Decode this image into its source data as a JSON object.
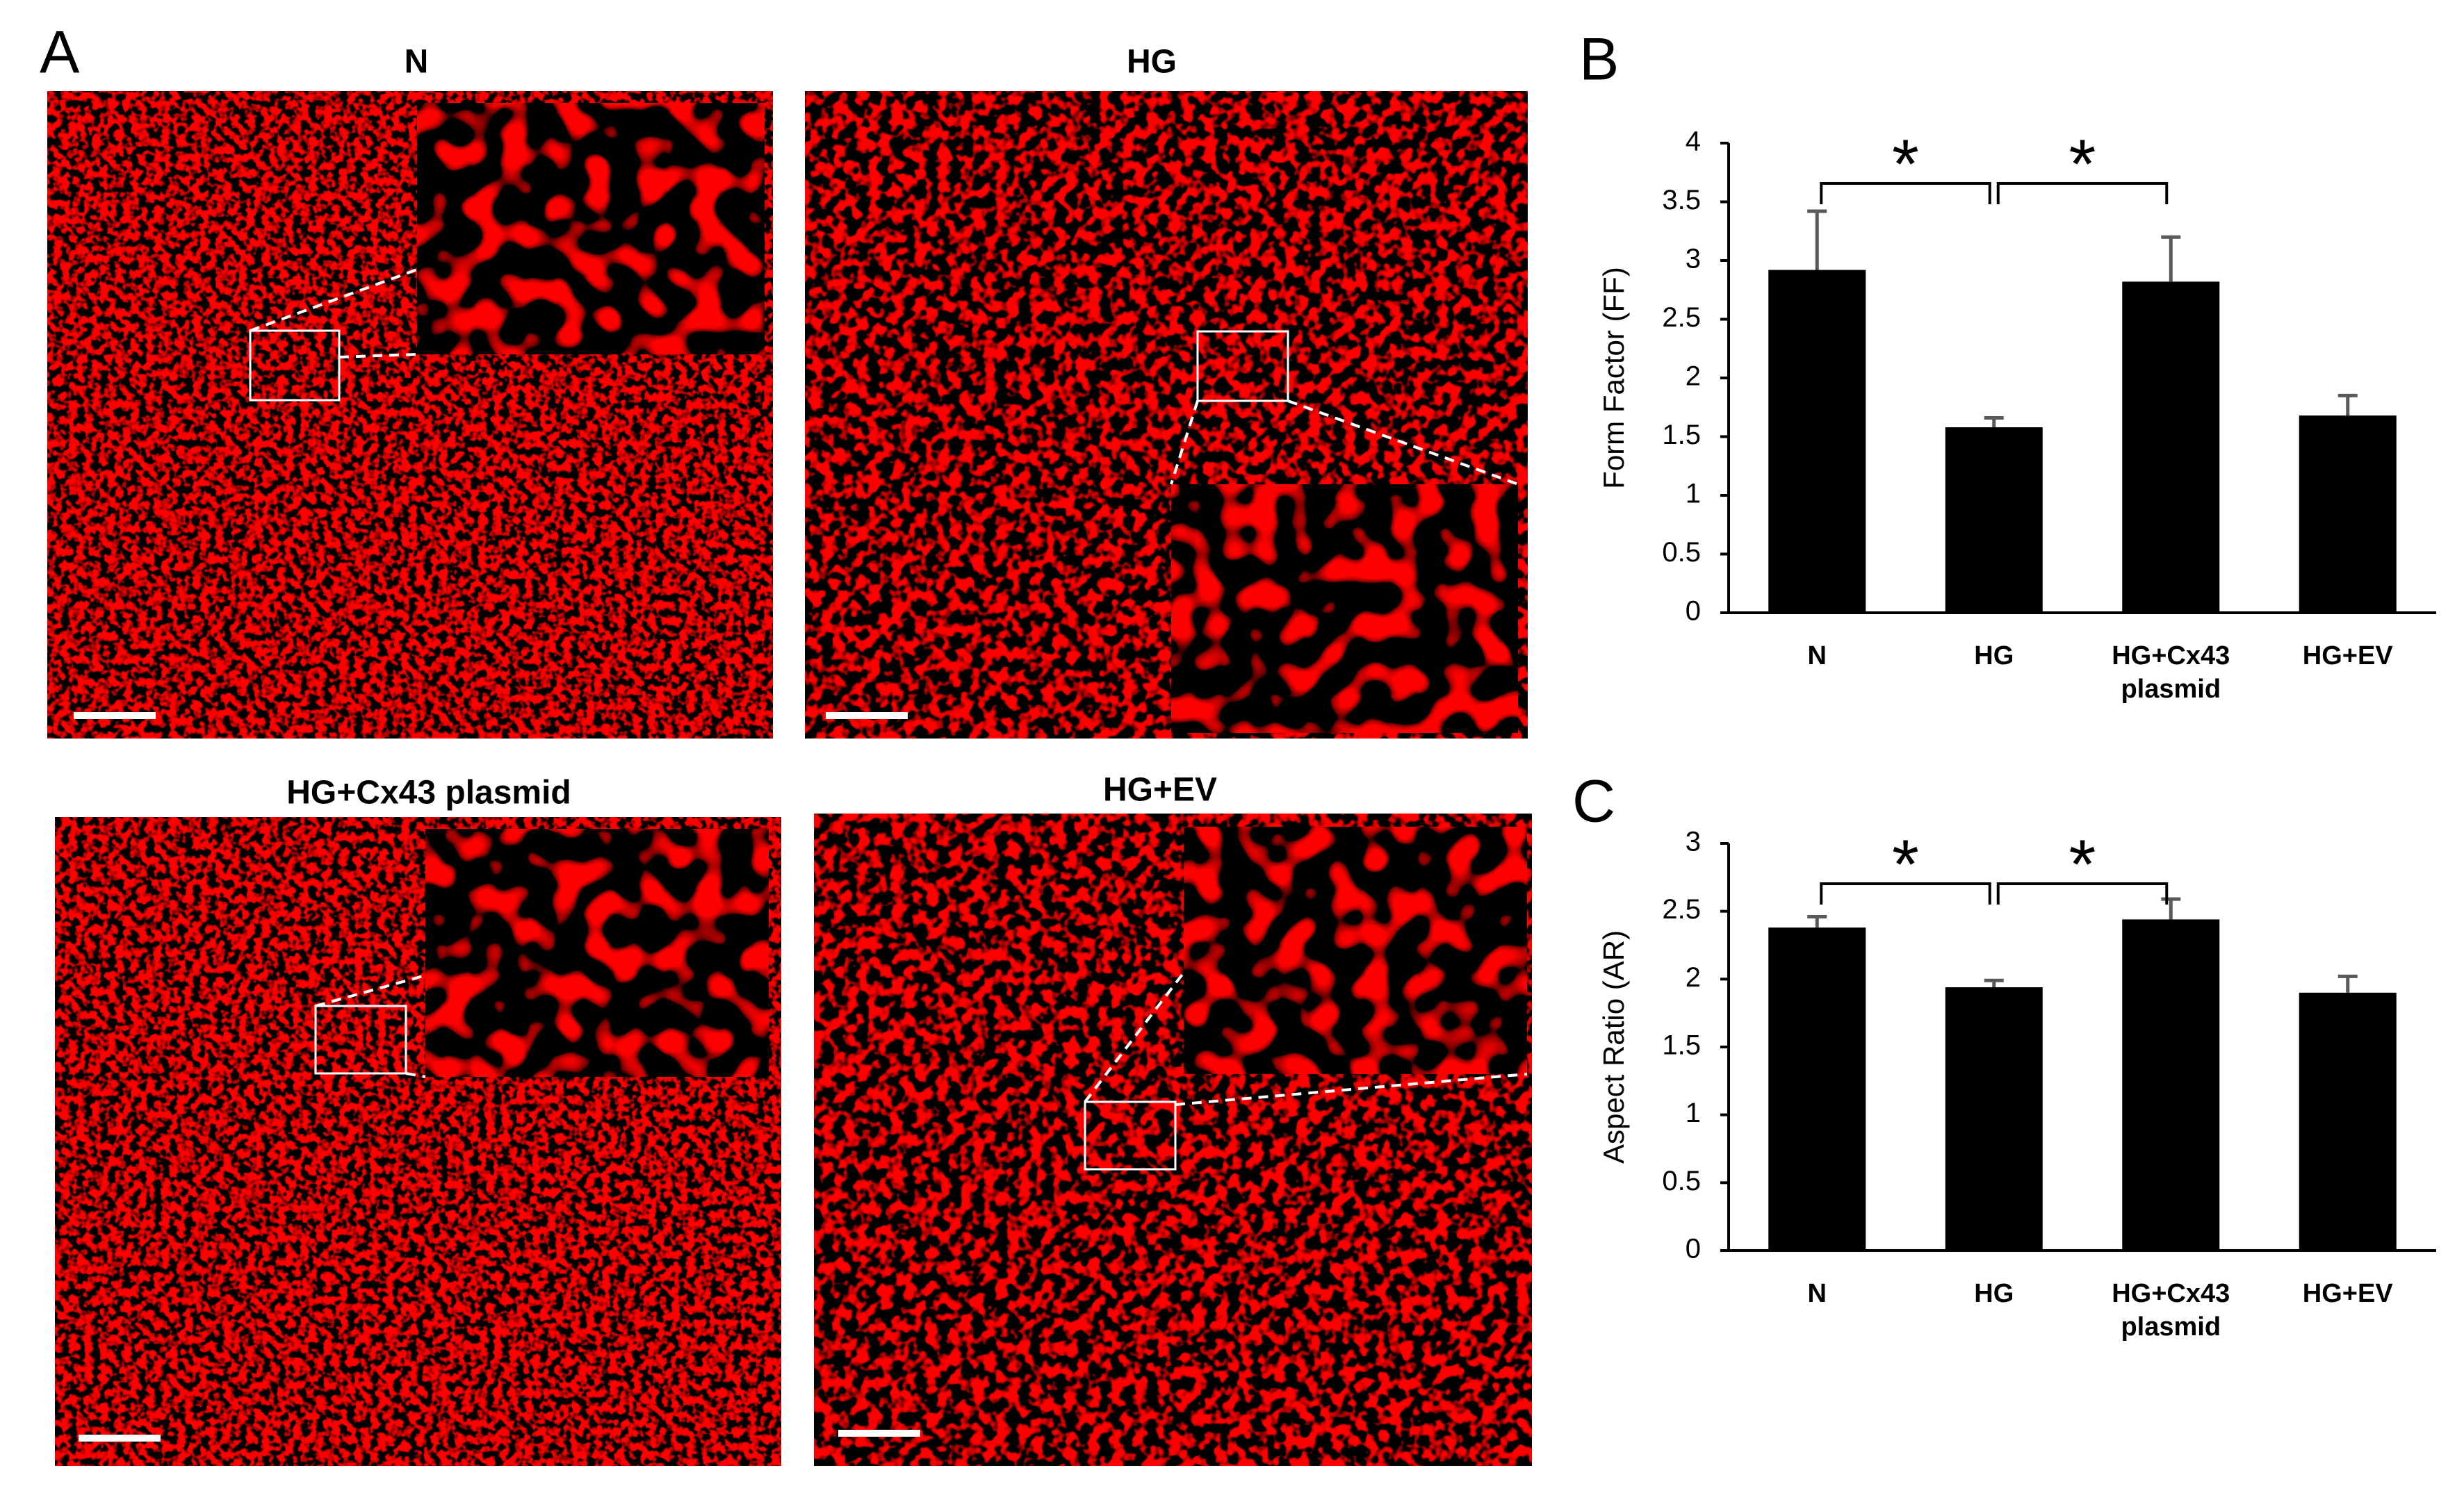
{
  "figure": {
    "panel_labels": [
      "A",
      "B",
      "C"
    ],
    "image_titles": [
      "N",
      "HG",
      "HG+Cx43 plasmid",
      "HG+EV"
    ]
  },
  "chart_data": [
    {
      "type": "bar",
      "y_label": "Form Factor (FF)",
      "categories": [
        "N",
        "HG",
        "HG+Cx43 plasmid",
        "HG+EV"
      ],
      "values": [
        2.92,
        1.58,
        2.82,
        1.68
      ],
      "errors": [
        0.5,
        0.08,
        0.38,
        0.17
      ],
      "color": "#000000",
      "error_color": "#595959",
      "ylim": [
        0,
        4
      ],
      "yticks": [
        0,
        0.5,
        1,
        1.5,
        2,
        2.5,
        3,
        3.5,
        4
      ],
      "annotations": [
        "*",
        "*"
      ]
    },
    {
      "type": "bar",
      "y_label": "Aspect Ratio (AR)",
      "categories": [
        "N",
        "HG",
        "HG+Cx43 plasmid",
        "HG+EV"
      ],
      "values": [
        2.38,
        1.94,
        2.44,
        1.9
      ],
      "errors": [
        0.08,
        0.05,
        0.15,
        0.12
      ],
      "color": "#000000",
      "error_color": "#595959",
      "ylim": [
        0,
        3
      ],
      "yticks": [
        0,
        0.5,
        1,
        1.5,
        2,
        2.5,
        3
      ],
      "annotations": [
        "*",
        "*"
      ]
    }
  ]
}
